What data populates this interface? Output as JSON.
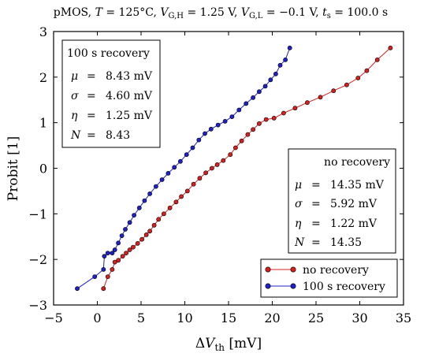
{
  "chart_data": {
    "type": "scatter",
    "title": "pMOS, T = 125°C, V_G,H = 1.25 V, V_G,L = −0.1 V, t_s = 100.0 s",
    "title_parts": {
      "prefix": "pMOS, ",
      "t_sym": "T",
      "t_val": " = 125°C, ",
      "vgh_sym": "V",
      "vgh_sub": "G,H",
      "vgh_val": " = 1.25 V, ",
      "vgl_sym": "V",
      "vgl_sub": "G,L",
      "vgl_val": " = −0.1 V, ",
      "ts_sym": "t",
      "ts_sub": "s",
      "ts_val": " = 100.0 s"
    },
    "xlabel": "ΔV_th [mV]",
    "xlabel_parts": {
      "delta": "Δ",
      "sym": "V",
      "sub": "th",
      "unit": " [mV]"
    },
    "ylabel": "Probit [1]",
    "xlim": [
      -5,
      35
    ],
    "ylim": [
      -3,
      3
    ],
    "xticks": [
      -5,
      0,
      5,
      10,
      15,
      20,
      25,
      30,
      35
    ],
    "yticks": [
      -3,
      -2,
      -1,
      0,
      1,
      2,
      3
    ],
    "xtick_labels": [
      "−5",
      "0",
      "5",
      "10",
      "15",
      "20",
      "25",
      "30",
      "35"
    ],
    "ytick_labels": [
      "−3",
      "−2",
      "−1",
      "0",
      "1",
      "2",
      "3"
    ],
    "grid": false,
    "legend_position": "lower-right",
    "series": [
      {
        "name": "no recovery",
        "color": "#d62020",
        "points": [
          [
            0.7,
            -2.64
          ],
          [
            1.2,
            -2.38
          ],
          [
            1.7,
            -2.22
          ],
          [
            2.0,
            -2.06
          ],
          [
            2.4,
            -2.02
          ],
          [
            2.9,
            -1.93
          ],
          [
            3.3,
            -1.86
          ],
          [
            3.7,
            -1.79
          ],
          [
            4.1,
            -1.73
          ],
          [
            4.6,
            -1.65
          ],
          [
            5.1,
            -1.56
          ],
          [
            5.6,
            -1.46
          ],
          [
            6.0,
            -1.38
          ],
          [
            6.5,
            -1.25
          ],
          [
            7.0,
            -1.12
          ],
          [
            7.6,
            -1.0
          ],
          [
            8.3,
            -0.87
          ],
          [
            9.0,
            -0.74
          ],
          [
            9.6,
            -0.62
          ],
          [
            10.3,
            -0.5
          ],
          [
            11.0,
            -0.35
          ],
          [
            11.7,
            -0.22
          ],
          [
            12.4,
            -0.1
          ],
          [
            13.1,
            0.0
          ],
          [
            13.7,
            0.08
          ],
          [
            14.4,
            0.17
          ],
          [
            15.2,
            0.3
          ],
          [
            15.8,
            0.45
          ],
          [
            16.5,
            0.6
          ],
          [
            17.2,
            0.74
          ],
          [
            17.8,
            0.85
          ],
          [
            18.5,
            0.98
          ],
          [
            19.3,
            1.07
          ],
          [
            20.2,
            1.1
          ],
          [
            21.3,
            1.21
          ],
          [
            22.6,
            1.32
          ],
          [
            24.0,
            1.44
          ],
          [
            25.5,
            1.56
          ],
          [
            27.0,
            1.7
          ],
          [
            28.5,
            1.83
          ],
          [
            29.8,
            1.98
          ],
          [
            30.8,
            2.14
          ],
          [
            32.0,
            2.38
          ],
          [
            33.5,
            2.64
          ]
        ]
      },
      {
        "name": "100 s recovery",
        "color": "#2020c8",
        "points": [
          [
            -2.3,
            -2.64
          ],
          [
            -0.3,
            -2.38
          ],
          [
            0.7,
            -2.22
          ],
          [
            0.8,
            -1.93
          ],
          [
            1.2,
            -1.86
          ],
          [
            1.7,
            -1.86
          ],
          [
            2.0,
            -1.79
          ],
          [
            2.4,
            -1.64
          ],
          [
            2.8,
            -1.48
          ],
          [
            3.2,
            -1.34
          ],
          [
            3.7,
            -1.19
          ],
          [
            4.2,
            -1.03
          ],
          [
            4.8,
            -0.87
          ],
          [
            5.4,
            -0.71
          ],
          [
            6.0,
            -0.56
          ],
          [
            6.7,
            -0.4
          ],
          [
            7.4,
            -0.25
          ],
          [
            8.1,
            -0.11
          ],
          [
            8.8,
            0.02
          ],
          [
            9.5,
            0.15
          ],
          [
            10.2,
            0.3
          ],
          [
            10.9,
            0.45
          ],
          [
            11.6,
            0.62
          ],
          [
            12.3,
            0.76
          ],
          [
            13.0,
            0.86
          ],
          [
            13.8,
            0.95
          ],
          [
            14.6,
            1.03
          ],
          [
            15.4,
            1.13
          ],
          [
            16.2,
            1.28
          ],
          [
            17.0,
            1.42
          ],
          [
            17.8,
            1.55
          ],
          [
            18.5,
            1.68
          ],
          [
            19.2,
            1.8
          ],
          [
            19.8,
            1.94
          ],
          [
            20.4,
            2.07
          ],
          [
            20.9,
            2.26
          ],
          [
            21.5,
            2.38
          ],
          [
            22.0,
            2.64
          ]
        ]
      }
    ],
    "annotations": [
      {
        "box": "100s_recovery",
        "title": "100 s recovery",
        "rows": [
          {
            "sym": "μ",
            "eq": "=",
            "val": "8.43 mV"
          },
          {
            "sym": "σ",
            "eq": "=",
            "val": "4.60 mV"
          },
          {
            "sym": "η",
            "eq": "=",
            "val": "1.25 mV"
          },
          {
            "sym": "N",
            "eq": "=",
            "val": "8.43"
          }
        ]
      },
      {
        "box": "no_recovery",
        "title": "no recovery",
        "rows": [
          {
            "sym": "μ",
            "eq": "=",
            "val": "14.35 mV"
          },
          {
            "sym": "σ",
            "eq": "=",
            "val": "5.92 mV"
          },
          {
            "sym": "η",
            "eq": "=",
            "val": "1.22 mV"
          },
          {
            "sym": "N",
            "eq": "=",
            "val": "14.35"
          }
        ]
      }
    ]
  }
}
